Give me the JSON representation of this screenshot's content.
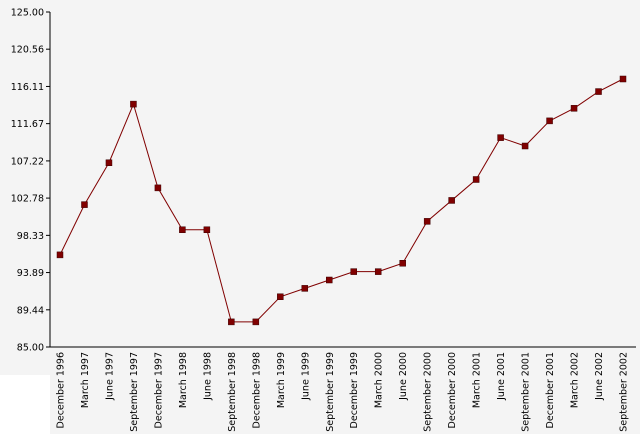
{
  "chart_data": {
    "type": "line",
    "categories": [
      "December 1996",
      "March 1997",
      "June 1997",
      "September 1997",
      "December 1997",
      "March 1998",
      "June 1998",
      "September 1998",
      "December 1998",
      "March 1999",
      "June 1999",
      "September 1999",
      "December 1999",
      "March 2000",
      "June 2000",
      "September 2000",
      "December 2000",
      "March 2001",
      "June 2001",
      "September 2001",
      "December 2001",
      "March 2002",
      "June 2002",
      "September 2002"
    ],
    "series": [
      {
        "color": "#800000",
        "values": [
          96.0,
          102.0,
          107.0,
          114.0,
          104.0,
          99.0,
          99.0,
          88.0,
          88.0,
          91.0,
          92.0,
          93.0,
          94.0,
          94.0,
          95.0,
          100.0,
          102.5,
          105.0,
          110.0,
          109.0,
          112.0,
          113.5,
          115.5,
          117.0
        ]
      }
    ],
    "ylim": [
      85,
      125
    ],
    "yticks": [
      {
        "value": 85,
        "label": "85.00"
      },
      89.44,
      93.89,
      98.33,
      102.78,
      107.22,
      111.67,
      116.11,
      120.56,
      {
        "value": 125,
        "label": "125.00"
      }
    ],
    "grid": false
  }
}
